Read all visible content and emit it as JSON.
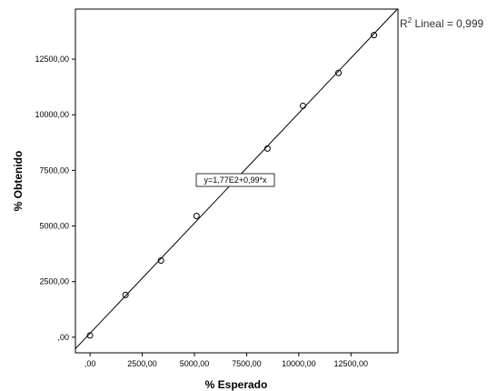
{
  "chart_data": {
    "type": "scatter",
    "xlabel": "% Esperado",
    "ylabel": "% Obtenido",
    "xlim": [
      -700,
      14750
    ],
    "ylim": [
      -700,
      14750
    ],
    "x_ticks": [
      0,
      2500,
      5000,
      7500,
      10000,
      12500
    ],
    "x_tick_labels": [
      ",00",
      "2500,00",
      "5000,00",
      "7500,00",
      "10000,00",
      "12500,00"
    ],
    "y_ticks": [
      0,
      2500,
      5000,
      7500,
      10000,
      12500
    ],
    "y_tick_labels": [
      ",00",
      "2500,00",
      "5000,00",
      "7500,00",
      "10000,00",
      "12500,00"
    ],
    "points": [
      {
        "x": 0,
        "y": 80
      },
      {
        "x": 1700,
        "y": 1900
      },
      {
        "x": 3400,
        "y": 3450
      },
      {
        "x": 5100,
        "y": 5450
      },
      {
        "x": 8500,
        "y": 8480
      },
      {
        "x": 10200,
        "y": 10400
      },
      {
        "x": 11900,
        "y": 11880
      },
      {
        "x": 13600,
        "y": 13580
      }
    ],
    "fit_line": {
      "intercept": 177,
      "slope": 0.99
    },
    "r2": {
      "prefix": "R",
      "superscript": "2",
      "label": " Lineal = 0,999"
    },
    "equation_label": "y=1,77E2+0,99*x",
    "grid": false,
    "legend": "none",
    "colors": {
      "frame": "#000000",
      "line": "#000000",
      "marker": "#000000"
    }
  }
}
